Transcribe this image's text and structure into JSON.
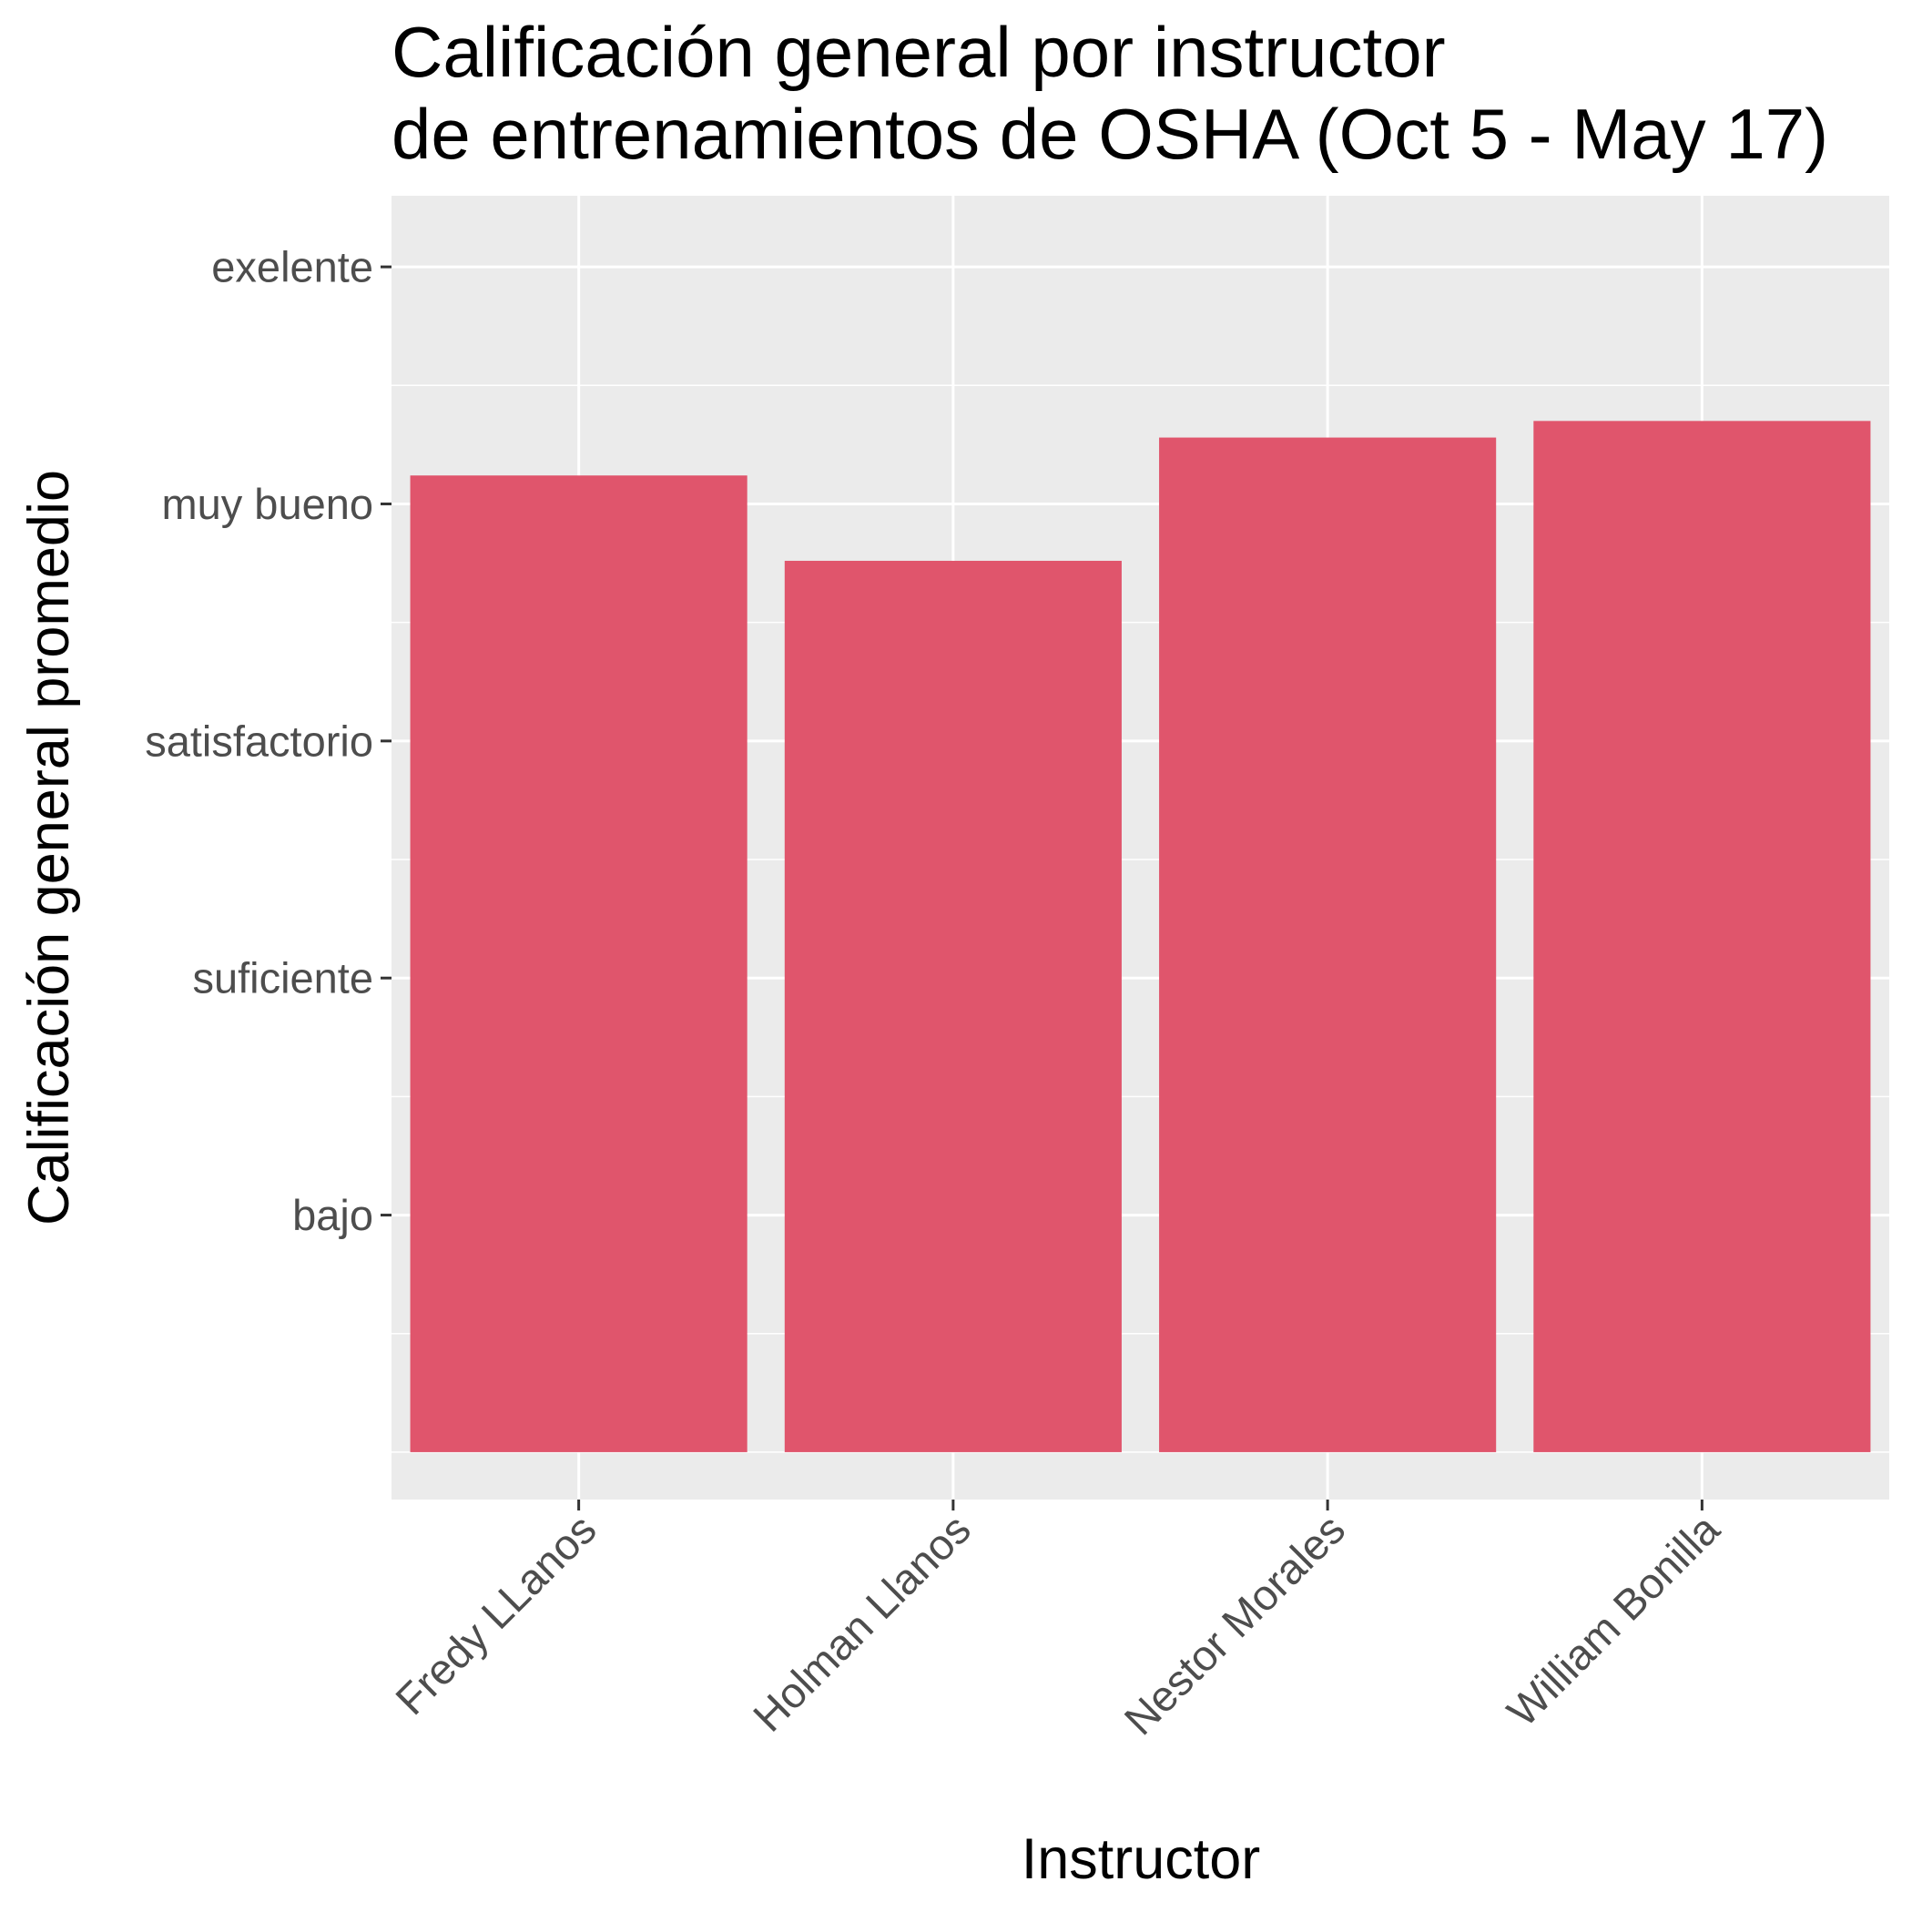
{
  "chart_data": {
    "type": "bar",
    "title": [
      "Calificación general por instructor",
      "de entrenamientos de OSHA (Oct 5 - May 17)"
    ],
    "xlabel": "Instructor",
    "ylabel": "Calificación general promedio",
    "categories": [
      "Fredy LLanos",
      "Holman Llanos",
      "Nestor Morales",
      "William Bonilla"
    ],
    "values": [
      4.12,
      3.76,
      4.28,
      4.35
    ],
    "y_ticks": [
      {
        "value": 1,
        "label": "bajo"
      },
      {
        "value": 2,
        "label": "suficiente"
      },
      {
        "value": 3,
        "label": "satisfactorio"
      },
      {
        "value": 4,
        "label": "muy bueno"
      },
      {
        "value": 5,
        "label": "exelente"
      }
    ],
    "ylim": [
      -0.2,
      5.3
    ],
    "bar_baseline": 0,
    "bar_color": "#e0556c",
    "panel_color": "#ebebeb",
    "grid": true,
    "legend": "none"
  }
}
